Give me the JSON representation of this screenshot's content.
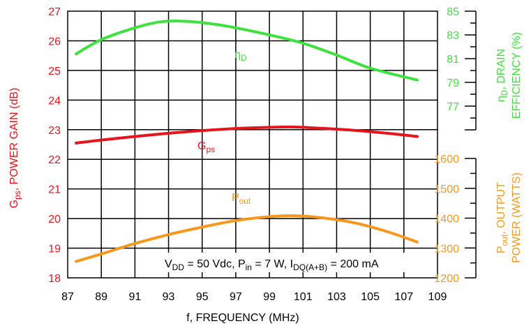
{
  "chart_data": {
    "type": "line",
    "xlabel": "f, FREQUENCY (MHz)",
    "xlim": [
      87,
      109
    ],
    "xticks": [
      "87",
      "89",
      "91",
      "93",
      "95",
      "97",
      "99",
      "101",
      "103",
      "105",
      "107",
      "109"
    ],
    "grid": true,
    "axes": {
      "left": {
        "label": "G_ps, POWER GAIN (dB)",
        "label_prefix": "G",
        "label_sub": "ps",
        "label_rest": ", POWER GAIN (dB)",
        "ylim": [
          18,
          27
        ],
        "ticks": [
          "18",
          "19",
          "20",
          "21",
          "22",
          "23",
          "24",
          "25",
          "26",
          "27"
        ],
        "color": "#e8141c"
      },
      "right_top": {
        "label_line1_symbol": "η",
        "label_line1_sub": "D",
        "label_line1_rest": ", DRAIN",
        "label_line2": "EFFICIENCY (%)",
        "ylim": [
          75,
          85
        ],
        "ticks": [
          "77",
          "79",
          "81",
          "83",
          "85"
        ],
        "color": "#3ee23e"
      },
      "right_bottom": {
        "label_line1_prefix": "P",
        "label_line1_sub": "out",
        "label_line1_rest": ", OUTPUT",
        "label_line2": "POWER (WATTS)",
        "ylim": [
          1200,
          1600
        ],
        "ticks": [
          "1200",
          "1300",
          "1400",
          "1500",
          "1600"
        ],
        "color": "#f7981d"
      }
    },
    "series": [
      {
        "name": "Gps",
        "label_main": "G",
        "label_sub": "ps",
        "axis": "left",
        "color": "#e8141c",
        "x": [
          87.5,
          89,
          91,
          93,
          95,
          97,
          99,
          100.5,
          102,
          104,
          106,
          107.8
        ],
        "y": [
          22.55,
          22.65,
          22.77,
          22.88,
          22.97,
          23.04,
          23.08,
          23.09,
          23.05,
          22.98,
          22.88,
          22.77
        ]
      },
      {
        "name": "ηD",
        "label_main": "η",
        "label_sub": "D",
        "axis": "right_top",
        "color": "#3ee23e",
        "x": [
          87.5,
          89,
          91,
          92.5,
          94,
          95.5,
          97,
          99,
          101,
          103,
          105,
          107.8
        ],
        "y": [
          81.4,
          82.6,
          83.6,
          84.1,
          84.15,
          83.95,
          83.6,
          83.0,
          82.3,
          81.3,
          80.2,
          79.2
        ]
      },
      {
        "name": "Pout",
        "label_main": "P",
        "label_sub": "out",
        "axis": "right_bottom",
        "color": "#f7981d",
        "x": [
          87.5,
          89,
          91,
          93,
          95,
          97,
          99,
          100.5,
          102,
          104,
          106,
          107.8
        ],
        "y": [
          1255,
          1280,
          1315,
          1345,
          1370,
          1392,
          1405,
          1408,
          1402,
          1385,
          1355,
          1320
        ]
      }
    ],
    "annotation": {
      "v": "V",
      "v_sub": "DD",
      "v_rest": " = 50 Vdc, P",
      "p_sub": "in",
      "p_rest": " = 7 W, I",
      "i_sub": "DQ(A+B)",
      "i_rest": " = 200 mA"
    }
  }
}
